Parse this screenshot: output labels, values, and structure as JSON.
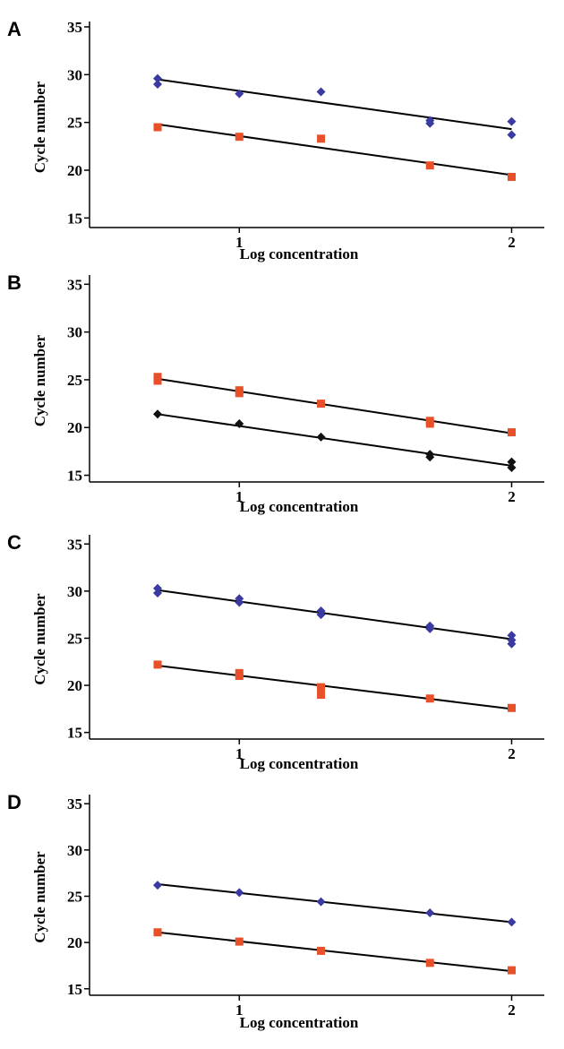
{
  "panels": [
    {
      "letter": "A"
    },
    {
      "letter": "B"
    },
    {
      "letter": "C"
    },
    {
      "letter": "D"
    }
  ],
  "colors": {
    "blue_marker": "#3b3aa0",
    "red_marker": "#e8502a",
    "black_marker": "#111111",
    "line": "#000000"
  },
  "chart_data": [
    {
      "panel": "A",
      "type": "scatter",
      "xlabel": "Log concentration",
      "ylabel": "Cycle number",
      "xticks": [
        1,
        2
      ],
      "yticks": [
        15,
        20,
        25,
        30,
        35
      ],
      "xlim": [
        0.45,
        2.12
      ],
      "ylim": [
        14,
        35
      ],
      "series": [
        {
          "marker": "diamond",
          "color": "#3b3aa0",
          "x": [
            0.7,
            0.7,
            1.0,
            1.3,
            1.7,
            1.7,
            2.0,
            2.0
          ],
          "y": [
            29.6,
            29.0,
            28.0,
            28.2,
            25.2,
            24.9,
            25.1,
            23.7
          ],
          "fit": {
            "x": [
              0.7,
              2.0
            ],
            "y": [
              29.5,
              24.3
            ]
          }
        },
        {
          "marker": "square",
          "color": "#e8502a",
          "x": [
            0.7,
            1.0,
            1.3,
            1.7,
            2.0
          ],
          "y": [
            24.5,
            23.5,
            23.3,
            20.5,
            19.3
          ],
          "fit": {
            "x": [
              0.7,
              2.0
            ],
            "y": [
              24.8,
              19.5
            ]
          }
        }
      ]
    },
    {
      "panel": "B",
      "type": "scatter",
      "xlabel": "Log concentration",
      "ylabel": "Cycle number",
      "xticks": [
        1,
        2
      ],
      "yticks": [
        15,
        20,
        25,
        30,
        35
      ],
      "xlim": [
        0.45,
        2.12
      ],
      "ylim": [
        14.3,
        35.5
      ],
      "series": [
        {
          "marker": "square",
          "color": "#e8502a",
          "x": [
            0.7,
            0.7,
            1.0,
            1.0,
            1.3,
            1.7,
            1.7,
            2.0
          ],
          "y": [
            25.3,
            24.9,
            23.9,
            23.6,
            22.5,
            20.7,
            20.4,
            19.5
          ],
          "fit": {
            "x": [
              0.7,
              2.0
            ],
            "y": [
              25.1,
              19.4
            ]
          }
        },
        {
          "marker": "diamond",
          "color": "#111111",
          "x": [
            0.7,
            1.0,
            1.3,
            1.7,
            1.7,
            2.0,
            2.0
          ],
          "y": [
            21.4,
            20.4,
            19.0,
            17.2,
            16.9,
            16.4,
            15.8
          ],
          "fit": {
            "x": [
              0.7,
              2.0
            ],
            "y": [
              21.4,
              16.0
            ]
          }
        }
      ]
    },
    {
      "panel": "C",
      "type": "scatter",
      "xlabel": "Log concentration",
      "ylabel": "Cycle number",
      "xticks": [
        1,
        2
      ],
      "yticks": [
        15,
        20,
        25,
        30,
        35
      ],
      "xlim": [
        0.45,
        2.12
      ],
      "ylim": [
        14.3,
        35.5
      ],
      "series": [
        {
          "marker": "diamond",
          "color": "#3b3aa0",
          "x": [
            0.7,
            0.7,
            1.0,
            1.0,
            1.3,
            1.3,
            1.7,
            1.7,
            2.0,
            2.0,
            2.0
          ],
          "y": [
            30.3,
            29.8,
            29.2,
            28.8,
            27.9,
            27.5,
            26.3,
            26.0,
            25.3,
            24.8,
            24.4
          ],
          "fit": {
            "x": [
              0.7,
              2.0
            ],
            "y": [
              30.1,
              24.9
            ]
          }
        },
        {
          "marker": "square",
          "color": "#e8502a",
          "x": [
            0.7,
            1.0,
            1.0,
            1.3,
            1.3,
            1.7,
            2.0
          ],
          "y": [
            22.2,
            21.3,
            21.0,
            19.8,
            19.0,
            18.6,
            17.6
          ],
          "fit": {
            "x": [
              0.7,
              2.0
            ],
            "y": [
              22.1,
              17.5
            ]
          }
        }
      ]
    },
    {
      "panel": "D",
      "type": "scatter",
      "xlabel": "Log concentration",
      "ylabel": "Cycle number",
      "xticks": [
        1,
        2
      ],
      "yticks": [
        15,
        20,
        25,
        30,
        35
      ],
      "xlim": [
        0.45,
        2.12
      ],
      "ylim": [
        14.3,
        35.5
      ],
      "series": [
        {
          "marker": "diamond",
          "color": "#3b3aa0",
          "x": [
            0.7,
            1.0,
            1.3,
            1.7,
            2.0
          ],
          "y": [
            26.2,
            25.4,
            24.4,
            23.2,
            22.2
          ],
          "fit": {
            "x": [
              0.7,
              2.0
            ],
            "y": [
              26.3,
              22.2
            ]
          }
        },
        {
          "marker": "square",
          "color": "#e8502a",
          "x": [
            0.7,
            1.0,
            1.3,
            1.7,
            2.0
          ],
          "y": [
            21.1,
            20.1,
            19.1,
            17.8,
            17.0
          ],
          "fit": {
            "x": [
              0.7,
              2.0
            ],
            "y": [
              21.1,
              16.9
            ]
          }
        }
      ]
    }
  ]
}
